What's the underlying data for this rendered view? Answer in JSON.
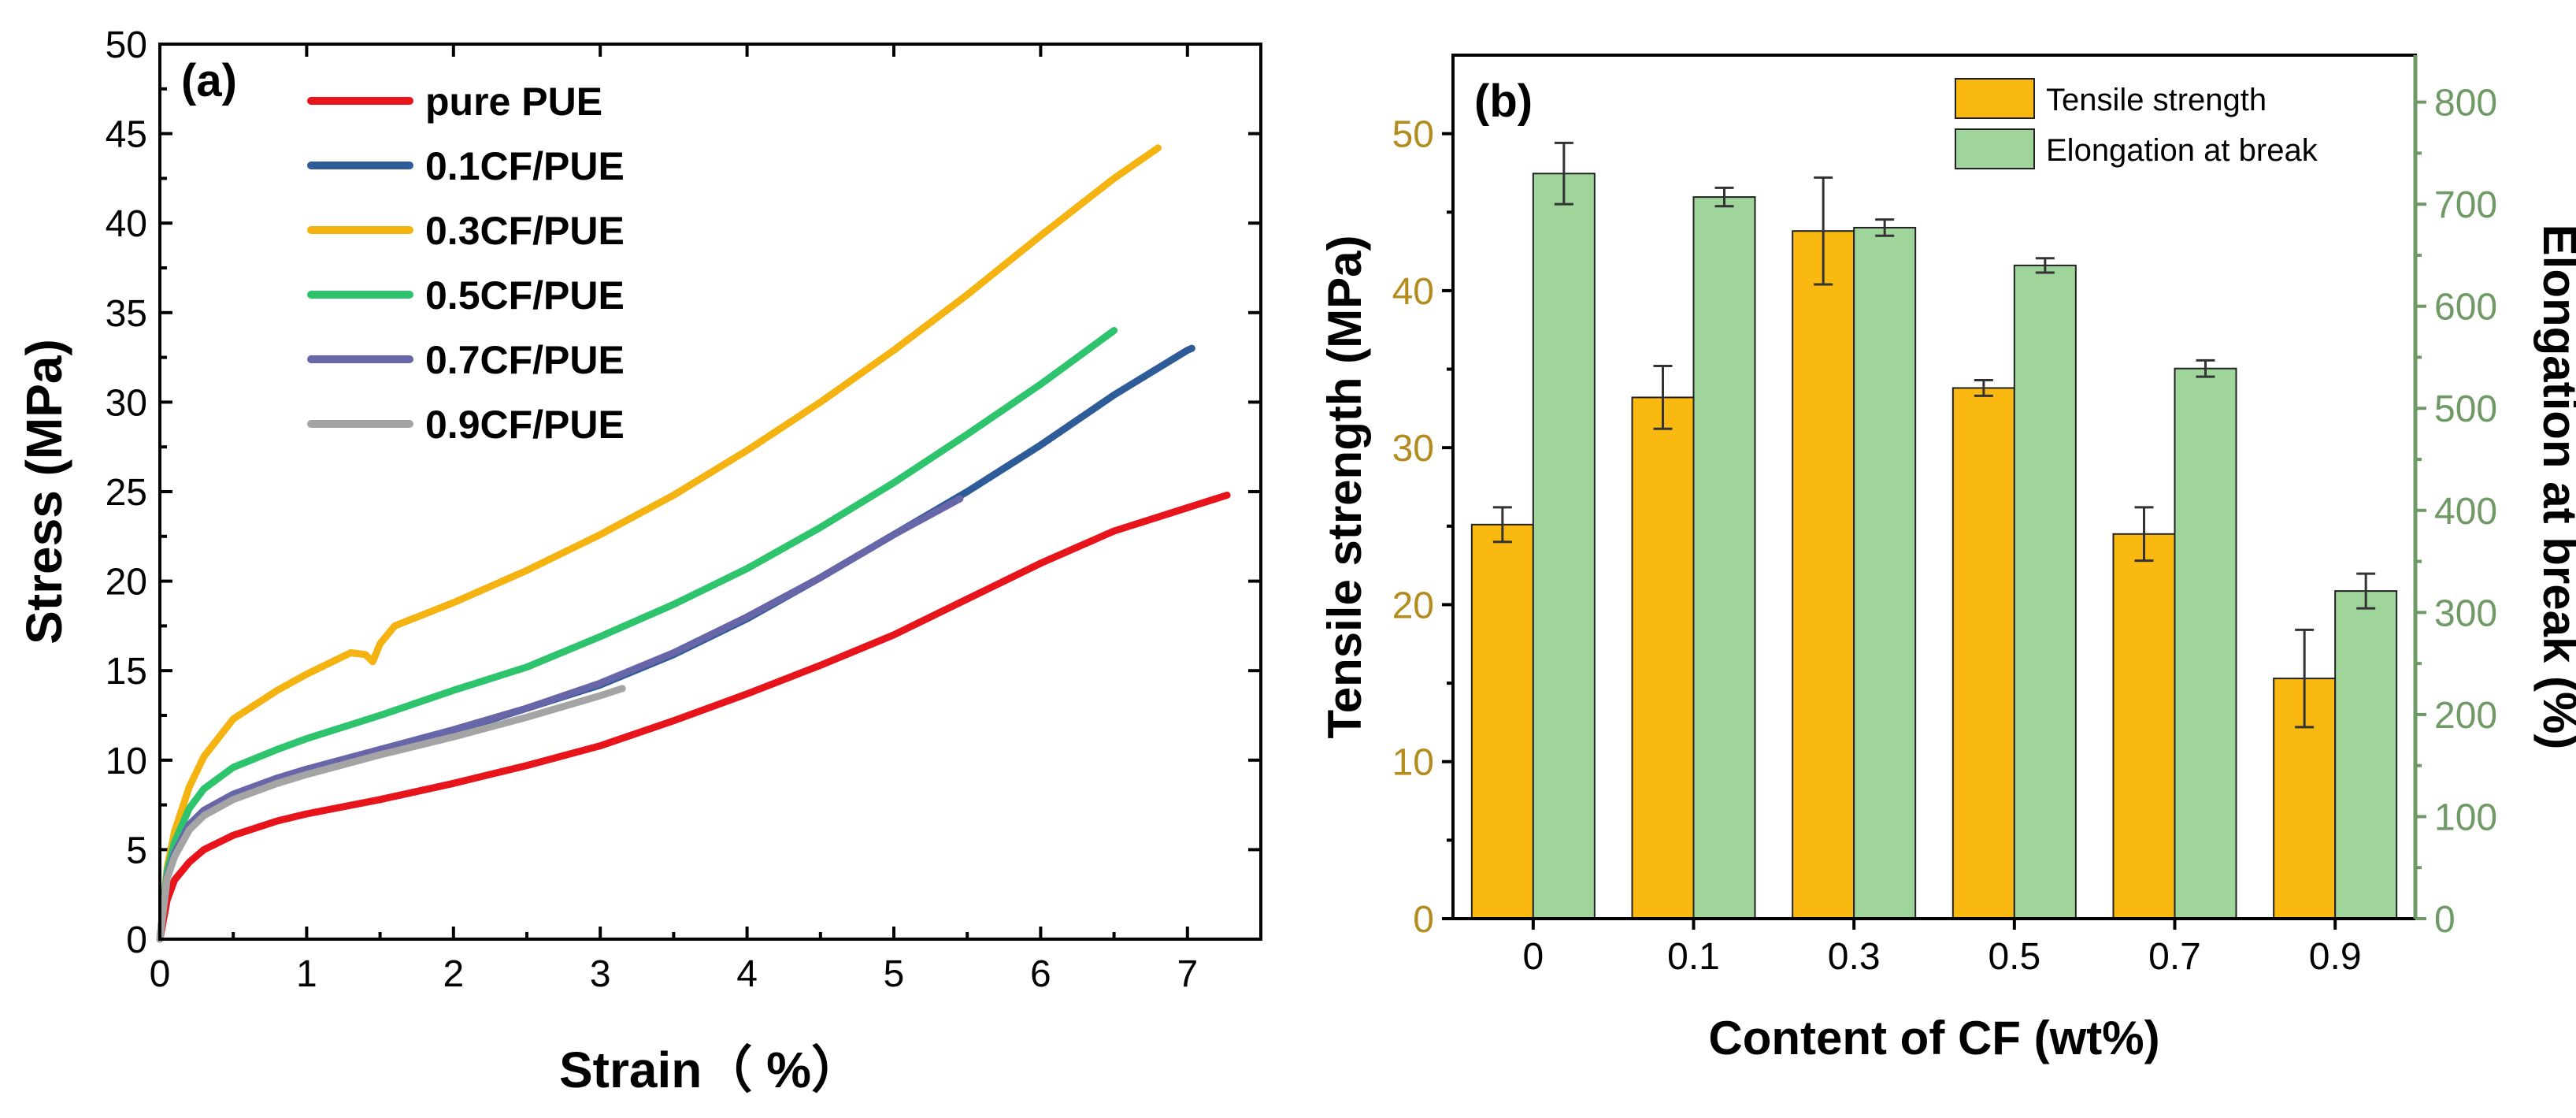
{
  "chart_data": [
    {
      "type": "line",
      "panel_label": "(a)",
      "xlabel": "Strain（ %）",
      "ylabel": "Stress (MPa)",
      "xlim": [
        0,
        7.5
      ],
      "ylim": [
        0,
        50
      ],
      "xticks": [
        0,
        1,
        2,
        3,
        4,
        5,
        6,
        7
      ],
      "yticks": [
        0,
        5,
        10,
        15,
        20,
        25,
        30,
        35,
        40,
        45,
        50
      ],
      "legend_position": "top-left",
      "series": [
        {
          "name": "pure PUE",
          "color": "#e8141b",
          "x": [
            0,
            0.05,
            0.1,
            0.2,
            0.3,
            0.5,
            0.8,
            1.0,
            1.5,
            2.0,
            2.5,
            3.0,
            3.5,
            4.0,
            4.5,
            5.0,
            5.5,
            6.0,
            6.5,
            7.0,
            7.27
          ],
          "y": [
            0,
            2.2,
            3.3,
            4.3,
            5.0,
            5.8,
            6.6,
            7.0,
            7.8,
            8.7,
            9.7,
            10.8,
            12.2,
            13.7,
            15.3,
            17.0,
            19.0,
            21.0,
            22.8,
            24.1,
            24.8
          ]
        },
        {
          "name": "0.1CF/PUE",
          "color": "#2e5c99",
          "x": [
            0,
            0.05,
            0.1,
            0.2,
            0.3,
            0.5,
            0.8,
            1.0,
            1.5,
            2.0,
            2.5,
            3.0,
            3.5,
            4.0,
            4.5,
            5.0,
            5.5,
            6.0,
            6.5,
            7.0,
            7.03
          ],
          "y": [
            0,
            3.5,
            4.8,
            6.3,
            7.1,
            8.0,
            8.9,
            9.4,
            10.5,
            11.6,
            12.9,
            14.2,
            15.9,
            17.9,
            20.2,
            22.6,
            25.0,
            27.6,
            30.4,
            32.9,
            33.0
          ]
        },
        {
          "name": "0.3CF/PUE",
          "color": "#f5b311",
          "x": [
            0,
            0.05,
            0.1,
            0.2,
            0.3,
            0.5,
            0.8,
            1.0,
            1.2,
            1.3,
            1.4,
            1.45,
            1.5,
            1.6,
            2.0,
            2.5,
            3.0,
            3.5,
            4.0,
            4.5,
            5.0,
            5.5,
            6.0,
            6.5,
            6.8
          ],
          "y": [
            0,
            4.0,
            6.0,
            8.5,
            10.2,
            12.3,
            13.9,
            14.8,
            15.6,
            16.0,
            15.9,
            15.5,
            16.5,
            17.5,
            18.8,
            20.6,
            22.6,
            24.8,
            27.3,
            30.0,
            32.9,
            36.0,
            39.3,
            42.5,
            44.2
          ]
        },
        {
          "name": "0.5CF/PUE",
          "color": "#2ec46e",
          "x": [
            0,
            0.05,
            0.1,
            0.2,
            0.3,
            0.5,
            0.8,
            1.0,
            1.5,
            2.0,
            2.5,
            3.0,
            3.5,
            4.0,
            4.5,
            5.0,
            5.5,
            6.0,
            6.5
          ],
          "y": [
            0,
            3.8,
            5.4,
            7.3,
            8.4,
            9.6,
            10.6,
            11.2,
            12.5,
            13.9,
            15.2,
            16.9,
            18.7,
            20.7,
            23.0,
            25.5,
            28.2,
            31.0,
            34.0
          ]
        },
        {
          "name": "0.7CF/PUE",
          "color": "#6766a8",
          "x": [
            0,
            0.05,
            0.1,
            0.2,
            0.3,
            0.5,
            0.8,
            1.0,
            1.5,
            2.0,
            2.5,
            3.0,
            3.5,
            4.0,
            4.5,
            5.0,
            5.45
          ],
          "y": [
            0,
            3.5,
            4.8,
            6.4,
            7.2,
            8.1,
            9.0,
            9.5,
            10.6,
            11.7,
            12.9,
            14.3,
            16.0,
            18.0,
            20.2,
            22.6,
            24.6
          ]
        },
        {
          "name": "0.9CF/PUE",
          "color": "#a4a4a4",
          "x": [
            0,
            0.05,
            0.1,
            0.2,
            0.3,
            0.5,
            0.8,
            1.0,
            1.5,
            2.0,
            2.5,
            3.0,
            3.15
          ],
          "y": [
            0,
            3.4,
            4.6,
            6.1,
            6.9,
            7.8,
            8.7,
            9.2,
            10.3,
            11.3,
            12.4,
            13.6,
            14.0
          ]
        }
      ]
    },
    {
      "type": "bar",
      "panel_label": "(b)",
      "categories": [
        "0",
        "0.1",
        "0.3",
        "0.5",
        "0.7",
        "0.9"
      ],
      "xlabel": "Content of CF (wt%)",
      "ylabel": "Tensile strength (MPa)",
      "ylabel_right": "Elongation at break (%)",
      "ylim": [
        0,
        55
      ],
      "yticks": [
        0,
        10,
        20,
        30,
        40,
        50
      ],
      "ylim_right": [
        0,
        846
      ],
      "yticks_right": [
        0,
        100,
        200,
        300,
        400,
        500,
        600,
        700,
        800
      ],
      "left_axis_color": "#b48c1e",
      "right_axis_color": "#6f9a66",
      "legend_position": "top-right",
      "series": [
        {
          "name": "Tensile strength",
          "color": "#f9b911",
          "axis": "left",
          "values": [
            25.1,
            33.2,
            43.8,
            33.8,
            24.5,
            15.3
          ],
          "errors": [
            1.1,
            2.0,
            3.4,
            0.5,
            1.7,
            3.1
          ]
        },
        {
          "name": "Elongation at break",
          "color": "#9fd59a",
          "axis": "right",
          "values": [
            730,
            707,
            677,
            640,
            539,
            321
          ],
          "errors": [
            30,
            9,
            8,
            7,
            8,
            17
          ]
        }
      ]
    }
  ]
}
